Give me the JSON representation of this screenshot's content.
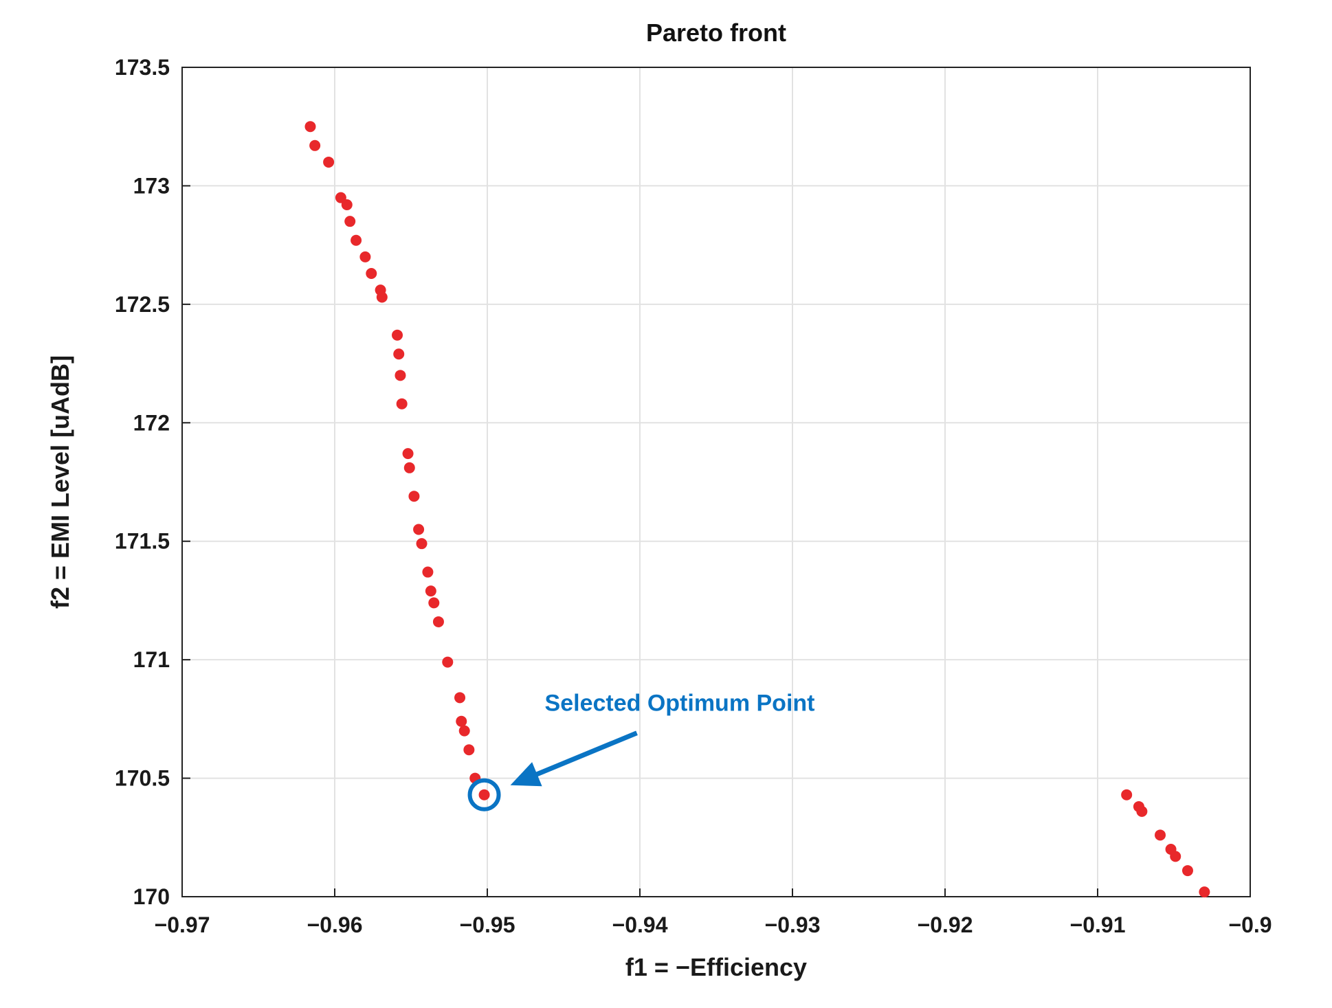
{
  "chart_data": {
    "type": "scatter",
    "title": "Pareto front",
    "xlabel": "f1 = −Efficiency",
    "ylabel": "f2 = EMI Level [uAdB]",
    "xlim": [
      -0.97,
      -0.9
    ],
    "ylim": [
      170,
      173.5
    ],
    "xticks": [
      -0.97,
      -0.96,
      -0.95,
      -0.94,
      -0.93,
      -0.92,
      -0.91,
      -0.9
    ],
    "xtick_labels": [
      "−0.97",
      "−0.96",
      "−0.95",
      "−0.94",
      "−0.93",
      "−0.92",
      "−0.91",
      "−0.9"
    ],
    "yticks": [
      170,
      170.5,
      171,
      171.5,
      172,
      172.5,
      173,
      173.5
    ],
    "ytick_labels": [
      "170",
      "170.5",
      "171",
      "171.5",
      "172",
      "172.5",
      "173",
      "173.5"
    ],
    "grid": true,
    "series": [
      {
        "color": "#e8282b",
        "points": [
          [
            -0.9616,
            173.25
          ],
          [
            -0.9613,
            173.17
          ],
          [
            -0.9604,
            173.1
          ],
          [
            -0.9596,
            172.95
          ],
          [
            -0.9592,
            172.92
          ],
          [
            -0.959,
            172.85
          ],
          [
            -0.9586,
            172.77
          ],
          [
            -0.958,
            172.7
          ],
          [
            -0.9576,
            172.63
          ],
          [
            -0.957,
            172.56
          ],
          [
            -0.9569,
            172.53
          ],
          [
            -0.9559,
            172.37
          ],
          [
            -0.9558,
            172.29
          ],
          [
            -0.9557,
            172.2
          ],
          [
            -0.9556,
            172.08
          ],
          [
            -0.9552,
            171.87
          ],
          [
            -0.9551,
            171.81
          ],
          [
            -0.9548,
            171.69
          ],
          [
            -0.9545,
            171.55
          ],
          [
            -0.9543,
            171.49
          ],
          [
            -0.9539,
            171.37
          ],
          [
            -0.9537,
            171.29
          ],
          [
            -0.9535,
            171.24
          ],
          [
            -0.9532,
            171.16
          ],
          [
            -0.9526,
            170.99
          ],
          [
            -0.9518,
            170.84
          ],
          [
            -0.9517,
            170.74
          ],
          [
            -0.9515,
            170.7
          ],
          [
            -0.9512,
            170.62
          ],
          [
            -0.9508,
            170.5
          ],
          [
            -0.9502,
            170.43
          ],
          [
            -0.9081,
            170.43
          ],
          [
            -0.9073,
            170.38
          ],
          [
            -0.9071,
            170.36
          ],
          [
            -0.9059,
            170.26
          ],
          [
            -0.9052,
            170.2
          ],
          [
            -0.9049,
            170.17
          ],
          [
            -0.9041,
            170.11
          ],
          [
            -0.903,
            170.02
          ]
        ]
      }
    ],
    "annotations": [
      {
        "text": "Selected Optimum Point",
        "color": "#0a74c4",
        "point": [
          -0.9502,
          170.43
        ]
      }
    ]
  }
}
